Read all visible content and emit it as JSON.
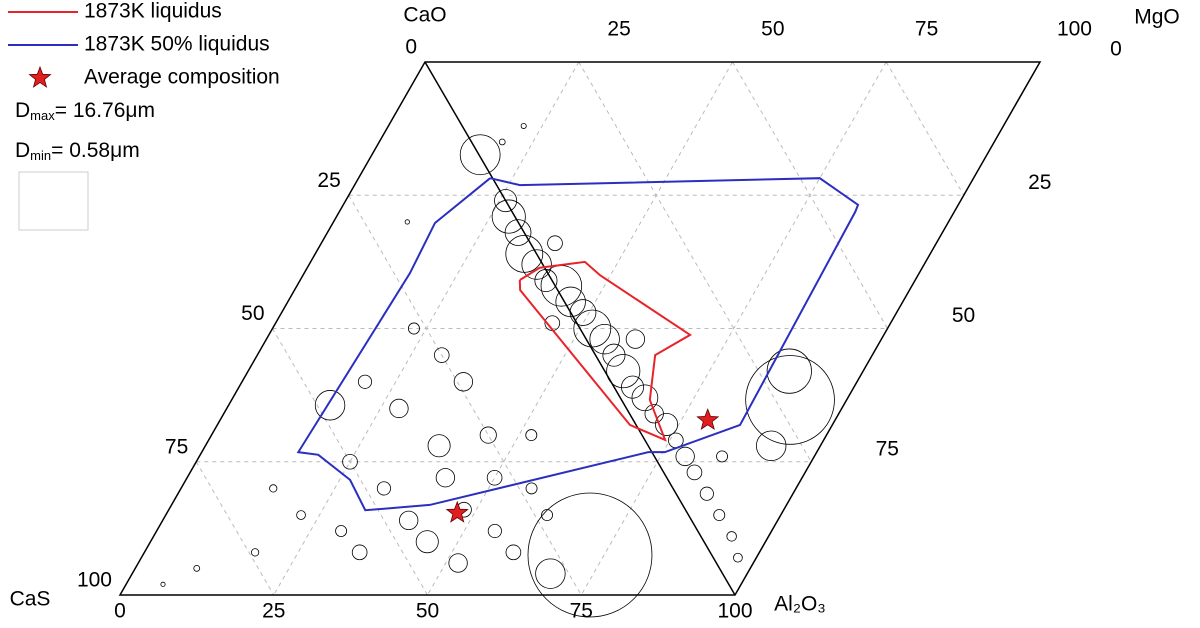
{
  "chart_data": {
    "type": "scatter",
    "axis_labels": {
      "top_left": "CaO",
      "top_right": "MgO",
      "bottom_left": "CaS",
      "bottom_right": "Al₂O₃"
    },
    "xlim": [
      0,
      100
    ],
    "ylim": [
      0,
      100
    ],
    "xticks": [
      0,
      25,
      50,
      75,
      100
    ],
    "yticks": [
      0,
      25,
      50,
      75,
      100
    ],
    "top_ticks": [
      25,
      50,
      75,
      100
    ],
    "right_ticks": [
      0,
      25,
      50,
      75
    ],
    "grid": true,
    "series": [
      {
        "name": "1873K liquidus",
        "color": "#e8242a",
        "kind": "line",
        "x": [
          35.7,
          37.8,
          44.6,
          48.3,
          68.5,
          64.7,
          68.0,
          74.2,
          67.1,
          36.7,
          35.7
        ],
        "y": [
          40.9,
          38.6,
          37.5,
          40.0,
          51.2,
          55.0,
          63.4,
          70.9,
          68.1,
          42.8,
          40.9
        ]
      },
      {
        "name": "1873K 50% liquidus",
        "color": "#2a2fc0",
        "kind": "line",
        "x": [
          21.4,
          26.9,
          75.0,
          83.7,
          83.9,
          85.0,
          75.3,
          72.6,
          42.0,
          32.0,
          26.7,
          19.2,
          15.7,
          17.2,
          16.6,
          21.4
        ],
        "y": [
          21.8,
          23.1,
          21.8,
          26.8,
          28.1,
          68.1,
          73.2,
          73.2,
          83.1,
          84.1,
          78.4,
          73.7,
          73.2,
          39.6,
          30.2,
          21.8
        ]
      },
      {
        "name": "Average composition",
        "color": "#e02020",
        "kind": "star",
        "x": [
          47.2,
          79.3
        ],
        "y": [
          84.6,
          67.2
        ]
      }
    ],
    "bubbles": {
      "x": [
        26,
        28,
        31,
        34,
        37,
        40,
        43,
        46,
        49,
        52,
        55,
        58,
        61,
        64,
        67,
        70,
        73,
        76,
        79,
        82,
        86,
        90,
        94,
        97,
        38,
        45,
        60,
        85,
        30,
        35,
        40,
        45,
        48,
        52,
        55,
        60,
        62,
        42,
        38,
        33,
        25,
        22,
        18,
        50,
        57,
        28,
        30,
        23,
        20,
        15,
        10,
        45,
        36,
        52,
        72.7,
        90.8,
        17.6,
        16.5,
        88,
        92,
        68,
        22,
        20,
        12,
        6
      ],
      "y": [
        26,
        29,
        32,
        36,
        38,
        41,
        42,
        45,
        47,
        50,
        52,
        55,
        58,
        61,
        63,
        66,
        68,
        71,
        74,
        77,
        81,
        85,
        89,
        93,
        34,
        49,
        52,
        74,
        88,
        92,
        86,
        90,
        84,
        94,
        88,
        92,
        85,
        78,
        72,
        80,
        75,
        85,
        92,
        78,
        80,
        65,
        55,
        50,
        60,
        80,
        95,
        70,
        60,
        70,
        92.5,
        63.4,
        17.4,
        64.4,
        58,
        72,
        96,
        12,
        15,
        30,
        98
      ],
      "size": [
        3,
        4.5,
        3.5,
        5,
        4,
        3,
        5.5,
        4,
        3.5,
        5,
        4,
        3,
        4.5,
        3,
        3.5,
        2.5,
        3,
        2,
        2.5,
        2,
        1.8,
        1.5,
        1.3,
        1.2,
        2,
        2,
        2.5,
        1.5,
        1.5,
        2,
        2.5,
        3,
        2,
        2.5,
        1.8,
        2,
        1.5,
        2.5,
        3,
        1.8,
        2,
        1.2,
        1,
        2,
        1.5,
        2.5,
        2,
        1.5,
        1.8,
        1,
        0.8,
        2.2,
        2.5,
        1.5,
        16.76,
        12,
        5.4,
        4,
        6,
        4,
        4,
        0.7,
        0.8,
        0.6,
        0.58
      ]
    },
    "size_legend": [
      {
        "symbol": "D",
        "subscript": "max",
        "text": "= 16.76μm"
      },
      {
        "symbol": "D",
        "subscript": "min",
        "text": "= 0.58μm"
      }
    ]
  }
}
